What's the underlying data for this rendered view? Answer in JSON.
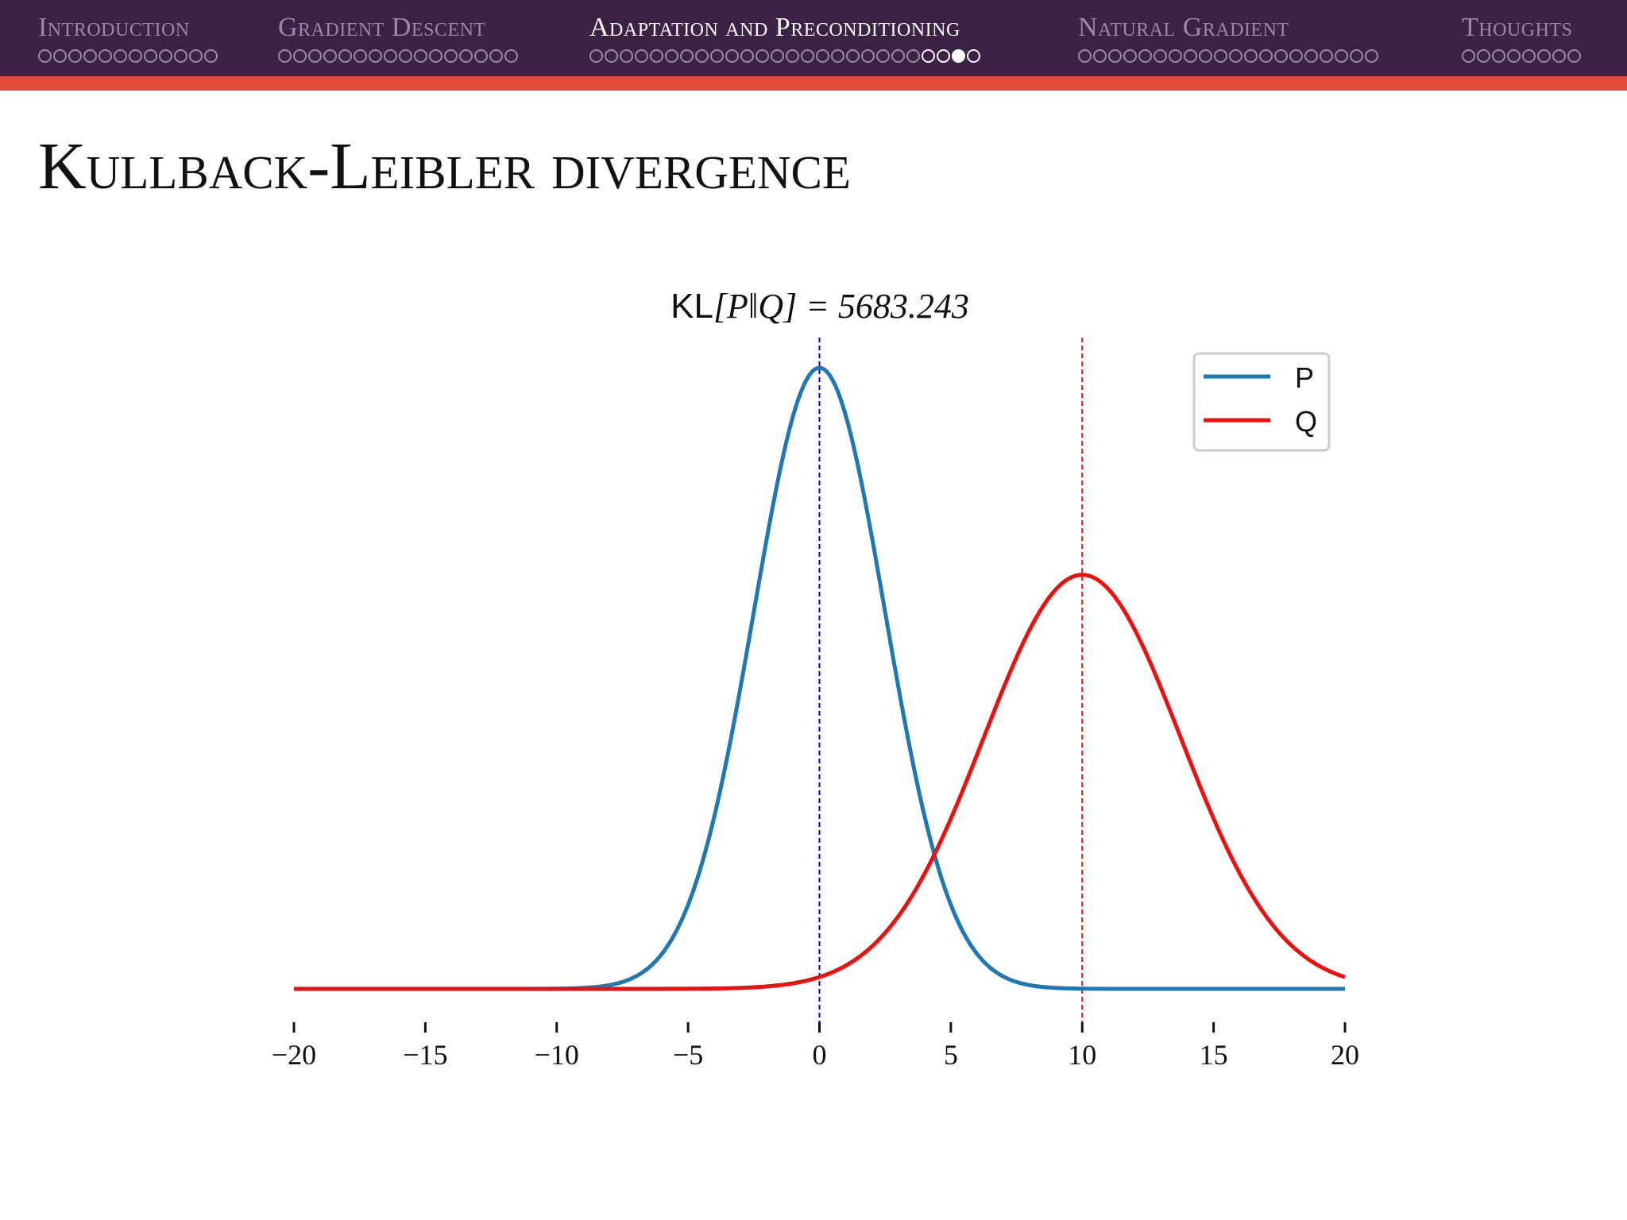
{
  "nav": {
    "sections": [
      {
        "title": "Introduction",
        "dots": 12,
        "current_index": -1,
        "highlight_from": -1
      },
      {
        "title": "Gradient Descent",
        "dots": 16,
        "current_index": -1,
        "highlight_from": -1
      },
      {
        "title": "Adaptation and Preconditioning",
        "dots": 26,
        "current_index": 24,
        "highlight_from": 22
      },
      {
        "title": "Natural Gradient",
        "dots": 20,
        "current_index": -1,
        "highlight_from": -1
      },
      {
        "title": "Thoughts",
        "dots": 8,
        "current_index": -1,
        "highlight_from": -1
      }
    ],
    "active_section": 2
  },
  "slide": {
    "title": "Kullback-Leibler divergence"
  },
  "colors": {
    "nav_bg": "#3c2245",
    "accent": "#e24a3b",
    "series_p": "#1f77b4",
    "series_q": "#ee0f0f",
    "mean_line_p": "#0000aa",
    "mean_line_q": "#ee0f0f"
  },
  "chart_data": {
    "type": "line",
    "title": "KL[P‖Q] = 5683.243",
    "title_parts": {
      "prefix": "KL",
      "math": "[P‖Q] = 5683.243"
    },
    "xlabel": "",
    "ylabel": "",
    "xlim": [
      -20,
      20
    ],
    "x_ticks": [
      -20,
      -15,
      -10,
      -5,
      0,
      5,
      10,
      15,
      20
    ],
    "x_tick_labels": [
      "−20",
      "−15",
      "−10",
      "−5",
      "0",
      "5",
      "10",
      "15",
      "20"
    ],
    "y_axis_visible": false,
    "grid": false,
    "legend_position": "top-right",
    "series": [
      {
        "name": "P",
        "distribution": "normal",
        "mean": 0,
        "std": 2.5,
        "peak_relative": 1.0
      },
      {
        "name": "Q",
        "distribution": "normal",
        "mean": 10,
        "std": 3.75,
        "peak_relative": 0.6667
      }
    ],
    "mean_lines": [
      {
        "series": "P",
        "x": 0,
        "style": "dashed"
      },
      {
        "series": "Q",
        "x": 10,
        "style": "dashed"
      }
    ]
  }
}
